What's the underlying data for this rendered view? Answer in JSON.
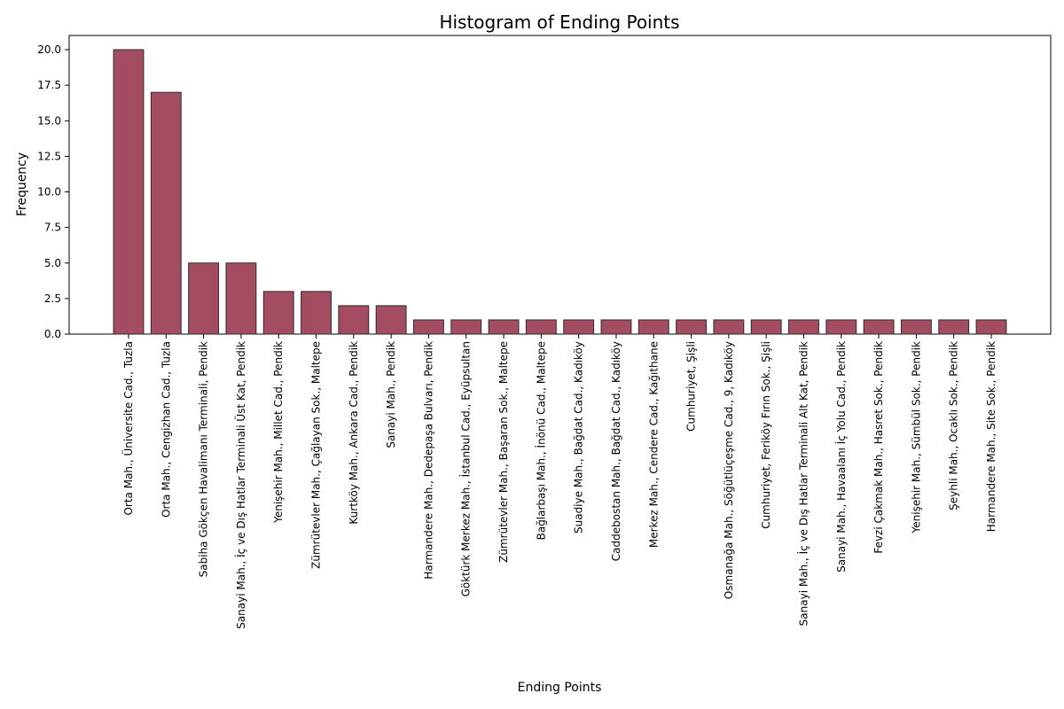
{
  "chart_data": {
    "type": "bar",
    "title": "Histogram of Ending Points",
    "xlabel": "Ending Points",
    "ylabel": "Frequency",
    "ylim": [
      0,
      21
    ],
    "yticks": [
      "0.0",
      "2.5",
      "5.0",
      "7.5",
      "10.0",
      "12.5",
      "15.0",
      "17.5",
      "20.0"
    ],
    "bar_color": "#a44d62",
    "edge_color": "#2b2b2b",
    "grid": false,
    "categories": [
      "Orta Mah., Üniversite Cad., Tuzla",
      "Orta Mah., Cengizhan Cad., Tuzla",
      "Sabiha Gökçen Havalimanı Terminali, Pendik",
      "Sanayi Mah., İç ve Dış Hatlar Terminali Üst Kat, Pendik",
      "Yenişehir Mah., Millet Cad., Pendik",
      "Zümrütevler Mah., Çağlayan Sok., Maltepe",
      "Kurtköy Mah., Ankara Cad., Pendik",
      "Sanayi Mah., Pendik",
      "Harmandere Mah., Dedepaşa Bulvarı, Pendik",
      "Göktürk Merkez Mah., İstanbul Cad., Eyüpsultan",
      "Zümrütevler Mah., Başaran Sok., Maltepe",
      "Bağlarbaşı Mah., İnönü Cad., Maltepe",
      "Suadiye Mah., Bağdat Cad., Kadıköy",
      "Caddebostan Mah., Bağdat Cad., Kadıköy",
      "Merkez Mah., Cendere Cad., Kağıthane",
      "Cumhuriyet, Şişli",
      "Osmanağa Mah., Söğütlüçeşme Cad., 9, Kadıköy",
      "Cumhuriyet, Feriköy Fırın Sok., Şişli",
      "Sanayi Mah., İç ve Dış Hatlar Terminali Alt Kat, Pendik",
      "Sanayi Mah., Havaalanı İç Yolu Cad., Pendik",
      "Fevzi Çakmak Mah., Hasret Sok., Pendik",
      "Yenişehir Mah., Sümbül Sok., Pendik",
      "Şeyhli Mah., Ocaklı Sok., Pendik",
      "Harmandere Mah., Site Sok., Pendik"
    ],
    "values": [
      20,
      17,
      5,
      5,
      3,
      3,
      2,
      2,
      1,
      1,
      1,
      1,
      1,
      1,
      1,
      1,
      1,
      1,
      1,
      1,
      1,
      1,
      1,
      1
    ]
  }
}
